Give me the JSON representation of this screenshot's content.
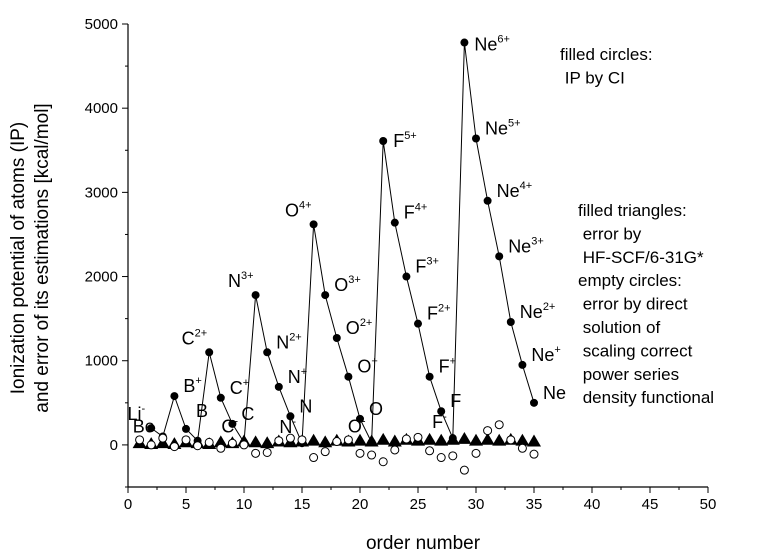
{
  "chart_data": {
    "type": "scatter",
    "xlabel": "order number",
    "ylabel_lines": [
      "Ionization potential of atoms (IP)",
      "and error of its estimations [kcal/mol]"
    ],
    "xlim": [
      0,
      50
    ],
    "ylim": [
      -500,
      5000
    ],
    "x_ticks": [
      0,
      5,
      10,
      15,
      20,
      25,
      30,
      35,
      40,
      45,
      50
    ],
    "y_ticks": [
      0,
      1000,
      2000,
      3000,
      4000,
      5000
    ],
    "grid": false,
    "series": [
      {
        "marker": "filled-circle",
        "line": true,
        "points": [
          {
            "x": 2,
            "y": 200
          },
          {
            "x": 3,
            "y": 100
          },
          {
            "x": 4,
            "y": 580
          },
          {
            "x": 5,
            "y": 190
          },
          {
            "x": 6,
            "y": 50
          },
          {
            "x": 7,
            "y": 1100
          },
          {
            "x": 8,
            "y": 560
          },
          {
            "x": 9,
            "y": 250
          },
          {
            "x": 10,
            "y": 30
          },
          {
            "x": 11,
            "y": 1780
          },
          {
            "x": 12,
            "y": 1100
          },
          {
            "x": 13,
            "y": 690
          },
          {
            "x": 14,
            "y": 340
          },
          {
            "x": 15,
            "y": 20
          },
          {
            "x": 16,
            "y": 2620
          },
          {
            "x": 17,
            "y": 1780
          },
          {
            "x": 18,
            "y": 1270
          },
          {
            "x": 19,
            "y": 810
          },
          {
            "x": 20,
            "y": 310
          },
          {
            "x": 21,
            "y": 30
          },
          {
            "x": 22,
            "y": 3610
          },
          {
            "x": 23,
            "y": 2640
          },
          {
            "x": 24,
            "y": 2000
          },
          {
            "x": 25,
            "y": 1440
          },
          {
            "x": 26,
            "y": 810
          },
          {
            "x": 27,
            "y": 400
          },
          {
            "x": 28,
            "y": 80
          },
          {
            "x": 29,
            "y": 4780
          },
          {
            "x": 30,
            "y": 3640
          },
          {
            "x": 31,
            "y": 2900
          },
          {
            "x": 32,
            "y": 2240
          },
          {
            "x": 33,
            "y": 1460
          },
          {
            "x": 34,
            "y": 950
          },
          {
            "x": 35,
            "y": 500
          }
        ]
      },
      {
        "marker": "filled-triangle",
        "line": false,
        "points": [
          {
            "x": 1,
            "y": 20
          },
          {
            "x": 2,
            "y": 10
          },
          {
            "x": 3,
            "y": 20
          },
          {
            "x": 4,
            "y": 10
          },
          {
            "x": 5,
            "y": 30
          },
          {
            "x": 6,
            "y": 20
          },
          {
            "x": 7,
            "y": 10
          },
          {
            "x": 8,
            "y": 30
          },
          {
            "x": 9,
            "y": 20
          },
          {
            "x": 10,
            "y": 40
          },
          {
            "x": 11,
            "y": 30
          },
          {
            "x": 12,
            "y": 20
          },
          {
            "x": 13,
            "y": 40
          },
          {
            "x": 14,
            "y": 30
          },
          {
            "x": 15,
            "y": 40
          },
          {
            "x": 16,
            "y": 50
          },
          {
            "x": 17,
            "y": 30
          },
          {
            "x": 18,
            "y": 50
          },
          {
            "x": 19,
            "y": 40
          },
          {
            "x": 20,
            "y": 50
          },
          {
            "x": 21,
            "y": 40
          },
          {
            "x": 22,
            "y": 60
          },
          {
            "x": 23,
            "y": 40
          },
          {
            "x": 24,
            "y": 60
          },
          {
            "x": 25,
            "y": 50
          },
          {
            "x": 26,
            "y": 60
          },
          {
            "x": 27,
            "y": 50
          },
          {
            "x": 28,
            "y": 60
          },
          {
            "x": 29,
            "y": 70
          },
          {
            "x": 30,
            "y": 50
          },
          {
            "x": 31,
            "y": 60
          },
          {
            "x": 32,
            "y": 50
          },
          {
            "x": 33,
            "y": 60
          },
          {
            "x": 34,
            "y": 50
          },
          {
            "x": 35,
            "y": 40
          }
        ]
      },
      {
        "marker": "empty-circle",
        "line": false,
        "points": [
          {
            "x": 1,
            "y": 60
          },
          {
            "x": 2,
            "y": 0
          },
          {
            "x": 3,
            "y": 80
          },
          {
            "x": 4,
            "y": -20
          },
          {
            "x": 5,
            "y": 60
          },
          {
            "x": 6,
            "y": -10
          },
          {
            "x": 7,
            "y": 30
          },
          {
            "x": 8,
            "y": -40
          },
          {
            "x": 9,
            "y": 20
          },
          {
            "x": 10,
            "y": 0
          },
          {
            "x": 11,
            "y": -100
          },
          {
            "x": 12,
            "y": -90
          },
          {
            "x": 13,
            "y": 50
          },
          {
            "x": 14,
            "y": 80
          },
          {
            "x": 15,
            "y": 60
          },
          {
            "x": 16,
            "y": -150
          },
          {
            "x": 17,
            "y": -80
          },
          {
            "x": 18,
            "y": 40
          },
          {
            "x": 19,
            "y": 60
          },
          {
            "x": 20,
            "y": -100
          },
          {
            "x": 21,
            "y": -120
          },
          {
            "x": 22,
            "y": -200
          },
          {
            "x": 23,
            "y": -60
          },
          {
            "x": 24,
            "y": 70
          },
          {
            "x": 25,
            "y": 90
          },
          {
            "x": 26,
            "y": -70
          },
          {
            "x": 27,
            "y": -150
          },
          {
            "x": 28,
            "y": -130
          },
          {
            "x": 29,
            "y": -300
          },
          {
            "x": 30,
            "y": -100
          },
          {
            "x": 31,
            "y": 170
          },
          {
            "x": 32,
            "y": 240
          },
          {
            "x": 33,
            "y": 60
          },
          {
            "x": 34,
            "y": -40
          },
          {
            "x": 35,
            "y": -110
          }
        ]
      }
    ],
    "point_labels": [
      {
        "x": 2,
        "y": 200,
        "text": "Li",
        "sup": "-"
      },
      {
        "x": 3,
        "y": 100,
        "text": "Be",
        "sup": ""
      },
      {
        "x": 4,
        "y": 580,
        "text": "B",
        "sup": "+"
      },
      {
        "x": 5,
        "y": 190,
        "text": "B",
        "sup": ""
      },
      {
        "x": 7,
        "y": 1100,
        "text": "C",
        "sup": "2+"
      },
      {
        "x": 8,
        "y": 560,
        "text": "C",
        "sup": "+"
      },
      {
        "x": 9,
        "y": 250,
        "text": "C",
        "sup": ""
      },
      {
        "x": 10,
        "y": 30,
        "text": "C",
        "sup": "-"
      },
      {
        "x": 11,
        "y": 1780,
        "text": "N",
        "sup": "3+"
      },
      {
        "x": 12,
        "y": 1100,
        "text": "N",
        "sup": "2+"
      },
      {
        "x": 13,
        "y": 690,
        "text": "N",
        "sup": "+"
      },
      {
        "x": 14,
        "y": 340,
        "text": "N",
        "sup": ""
      },
      {
        "x": 15,
        "y": 20,
        "text": "N",
        "sup": "-"
      },
      {
        "x": 16,
        "y": 2620,
        "text": "O",
        "sup": "4+"
      },
      {
        "x": 17,
        "y": 1780,
        "text": "O",
        "sup": "3+"
      },
      {
        "x": 18,
        "y": 1270,
        "text": "O",
        "sup": "2+"
      },
      {
        "x": 19,
        "y": 810,
        "text": "O",
        "sup": "+"
      },
      {
        "x": 20,
        "y": 310,
        "text": "O",
        "sup": ""
      },
      {
        "x": 21,
        "y": 30,
        "text": "O",
        "sup": "-"
      },
      {
        "x": 22,
        "y": 3610,
        "text": "F",
        "sup": "5+"
      },
      {
        "x": 23,
        "y": 2640,
        "text": "F",
        "sup": "4+"
      },
      {
        "x": 24,
        "y": 2000,
        "text": "F",
        "sup": "3+"
      },
      {
        "x": 25,
        "y": 1440,
        "text": "F",
        "sup": "2+"
      },
      {
        "x": 26,
        "y": 810,
        "text": "F",
        "sup": "+"
      },
      {
        "x": 27,
        "y": 400,
        "text": "F",
        "sup": ""
      },
      {
        "x": 28,
        "y": 80,
        "text": "F",
        "sup": "-"
      },
      {
        "x": 29,
        "y": 4780,
        "text": "Ne",
        "sup": "6+"
      },
      {
        "x": 30,
        "y": 3640,
        "text": "Ne",
        "sup": "5+"
      },
      {
        "x": 31,
        "y": 2900,
        "text": "Ne",
        "sup": "4+"
      },
      {
        "x": 32,
        "y": 2240,
        "text": "Ne",
        "sup": "3+"
      },
      {
        "x": 33,
        "y": 1460,
        "text": "Ne",
        "sup": "2+"
      },
      {
        "x": 34,
        "y": 950,
        "text": "Ne",
        "sup": "+"
      },
      {
        "x": 35,
        "y": 500,
        "text": "Ne",
        "sup": ""
      }
    ],
    "annotations": [
      {
        "lines": [
          "filled circles:",
          "  IP by CI"
        ]
      },
      {
        "lines": [
          "filled triangles:",
          "  error by",
          "  HF-SCF/6-31G*",
          "empty circles:",
          "  error by direct",
          "  solution of",
          "  scaling correct",
          "  power series",
          "  density functional"
        ]
      }
    ]
  }
}
